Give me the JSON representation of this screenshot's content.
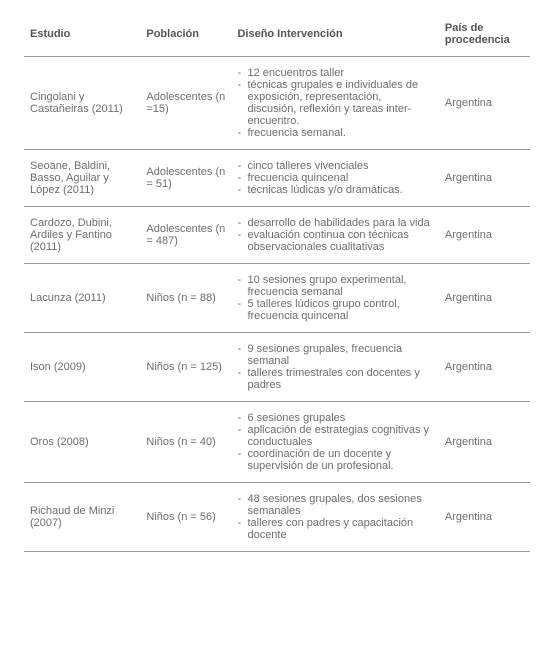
{
  "typography": {
    "fontsize_pt": 11,
    "header_fontsize_pt": 11,
    "font_family": "Helvetica",
    "text_color": "#6e6e6e",
    "header_color": "#555555",
    "border_color": "#999999",
    "background_color": "#ffffff"
  },
  "table": {
    "columns": [
      {
        "key": "estudio",
        "label": "Estudio",
        "width_pct": 23
      },
      {
        "key": "poblacion",
        "label": "Población",
        "width_pct": 18
      },
      {
        "key": "diseno",
        "label": "Diseño Intervención",
        "width_pct": 41
      },
      {
        "key": "pais",
        "label": "País de procedencia",
        "width_pct": 18
      }
    ],
    "rows": [
      {
        "estudio": "Cingolani y Castañeiras (2011)",
        "poblacion": "Adolescentes (n =15)",
        "diseno": [
          "12 encuentros taller",
          "técnicas grupales e individuales de exposición, representación, discusión, reflexión y tareas inter-encuentro.",
          "frecuencia semanal."
        ],
        "pais": "Argentina"
      },
      {
        "estudio": "Seoane, Baldini, Basso, Aguilar y López (2011)",
        "poblacion": "Adolescentes (n = 51)",
        "diseno": [
          "cinco talleres vivenciales",
          "frecuencia quincenal",
          "técnicas lúdicas y/o dramáticas."
        ],
        "pais": "Argentina"
      },
      {
        "estudio": "Cardozo, Dubini, Ardiles y Fantino (2011)",
        "poblacion": "Adolescentes (n = 487)",
        "diseno": [
          "desarrollo de habilidades para la vida",
          "evaluación continua con técnicas observacionales cualitativas"
        ],
        "pais": "Argentina"
      },
      {
        "estudio": "Lacunza (2011)",
        "poblacion": "Niños (n = 88)",
        "diseno": [
          "10 sesiones grupo experimental, frecuencia semanal",
          "5 talleres lúdicos grupo control, frecuencia quincenal"
        ],
        "pais": "Argentina"
      },
      {
        "estudio": "Ison (2009)",
        "poblacion": "Niños (n = 125)",
        "diseno": [
          "9 sesiones grupales, frecuencia semanal",
          "talleres trimestrales con docentes y padres"
        ],
        "pais": "Argentina"
      },
      {
        "estudio": "Oros (2008)",
        "poblacion": "Niños (n = 40)",
        "diseno": [
          "6 sesiones grupales",
          "aplicación de estrategias cognitivas y conductuales",
          "coordinación de un docente y supervisión de un profesional."
        ],
        "pais": "Argentina"
      },
      {
        "estudio": "Richaud de Minzi (2007)",
        "poblacion": "Niños (n = 56)",
        "diseno": [
          "48 sesiones grupales, dos sesiones semanales",
          "talleres con padres y capacitación docente"
        ],
        "pais": "Argentina"
      }
    ]
  }
}
